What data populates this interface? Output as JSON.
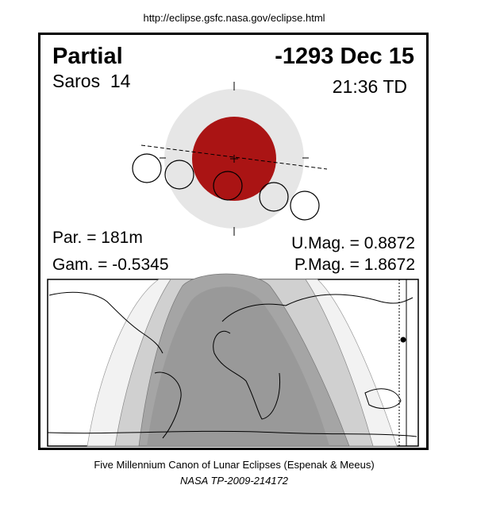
{
  "header": {
    "url": "http://eclipse.gsfc.nasa.gov/eclipse.html"
  },
  "title": {
    "type": "Partial",
    "date": "-1293 Dec 15"
  },
  "info": {
    "saros": "Saros  14",
    "time": "21:36 TD"
  },
  "stats": {
    "par": "Par. = 181m",
    "gam": "Gam. = -0.5345",
    "umag": "U.Mag. = 0.8872",
    "pmag": "P.Mag. = 1.8672"
  },
  "footer": {
    "canon": "Five Millennium Canon of Lunar Eclipses (Espenak & Meeus)",
    "report": "NASA TP-2009-214172"
  }
}
